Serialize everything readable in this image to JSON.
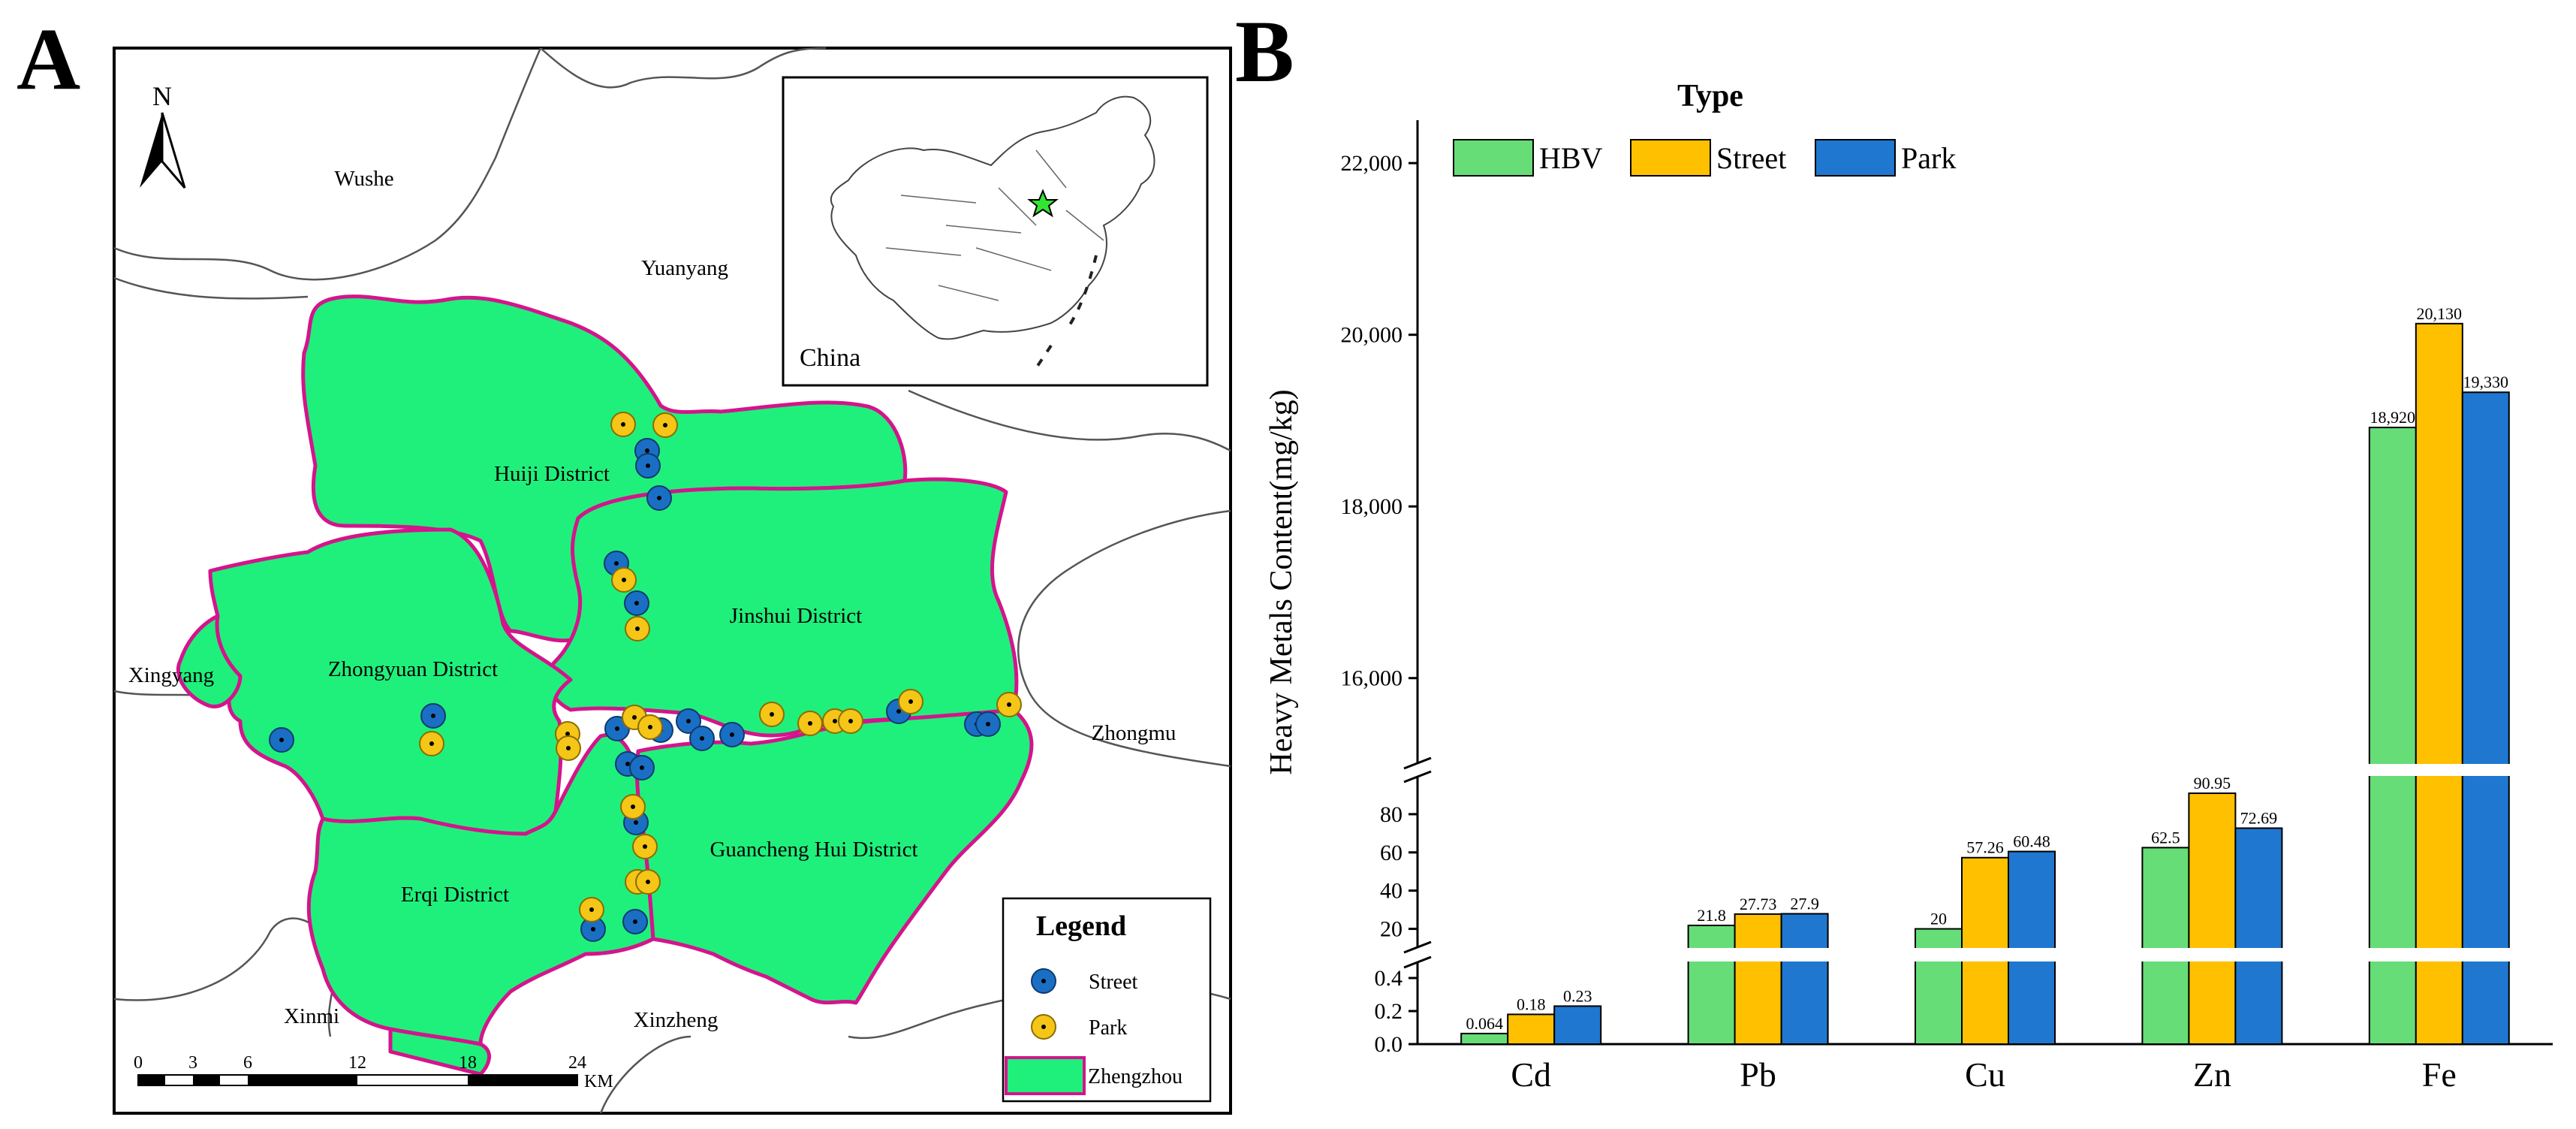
{
  "panels": {
    "a_label": "A",
    "b_label": "B"
  },
  "map": {
    "labels": {
      "wushe": "Wushe",
      "yuanyang": "Yuanyang",
      "xingyang": "Xingyang",
      "zhongmu": "Zhongmu",
      "xinmi": "Xinmi",
      "xinzheng": "Xinzheng",
      "huiji": "Huiji District",
      "jinshui": "Jinshui District",
      "zhongyuan": "Zhongyuan District",
      "erqi": "Erqi District",
      "guancheng": "Guancheng Hui District"
    },
    "north_label": "N",
    "inset_label": "China",
    "colors": {
      "district_fill": "#1ff07c",
      "district_border": "#d4148c",
      "street": "#1a6fc4",
      "park": "#f5c518",
      "star": "#33e533"
    },
    "scale_ticks": [
      "0",
      "3",
      "6",
      "12",
      "18",
      "24"
    ],
    "scale_unit": "KM",
    "legend": {
      "title": "Legend",
      "street": "Street",
      "park": "Park",
      "zhengzhou": "Zhengzhou"
    }
  },
  "chart_data": {
    "type": "bar",
    "legend_title": "Type",
    "categories": [
      "Cd",
      "Pb",
      "Cu",
      "Zn",
      "Fe"
    ],
    "series": [
      {
        "name": "HBV",
        "color": "#66dd77",
        "values": [
          0.064,
          21.8,
          20,
          62.5,
          18920
        ],
        "labels": [
          "0.064",
          "21.8",
          "20",
          "62.5",
          "18,920"
        ]
      },
      {
        "name": "Street",
        "color": "#ffc000",
        "values": [
          0.18,
          27.73,
          57.26,
          90.95,
          20130
        ],
        "labels": [
          "0.18",
          "27.73",
          "57.26",
          "90.95",
          "20,130"
        ]
      },
      {
        "name": "Park",
        "color": "#1f77cf",
        "values": [
          0.23,
          27.9,
          60.48,
          72.69,
          19330
        ],
        "labels": [
          "0.23",
          "27.9",
          "60.48",
          "72.69",
          "19,330"
        ]
      }
    ],
    "ylabel": "Heavy Metals Content(mg/kg)",
    "axis_segments": [
      {
        "range": [
          0,
          0.5
        ],
        "ticks": [
          0.0,
          0.2,
          0.4
        ],
        "tick_labels": [
          "0.0",
          "0.2",
          "0.4"
        ]
      },
      {
        "range": [
          10,
          100
        ],
        "ticks": [
          20,
          40,
          60,
          80
        ],
        "tick_labels": [
          "20",
          "40",
          "60",
          "80"
        ]
      },
      {
        "range": [
          15000,
          22500
        ],
        "ticks": [
          16000,
          18000,
          20000,
          22000
        ],
        "tick_labels": [
          "16,000",
          "18,000",
          "20,000",
          "22,000"
        ]
      }
    ]
  }
}
